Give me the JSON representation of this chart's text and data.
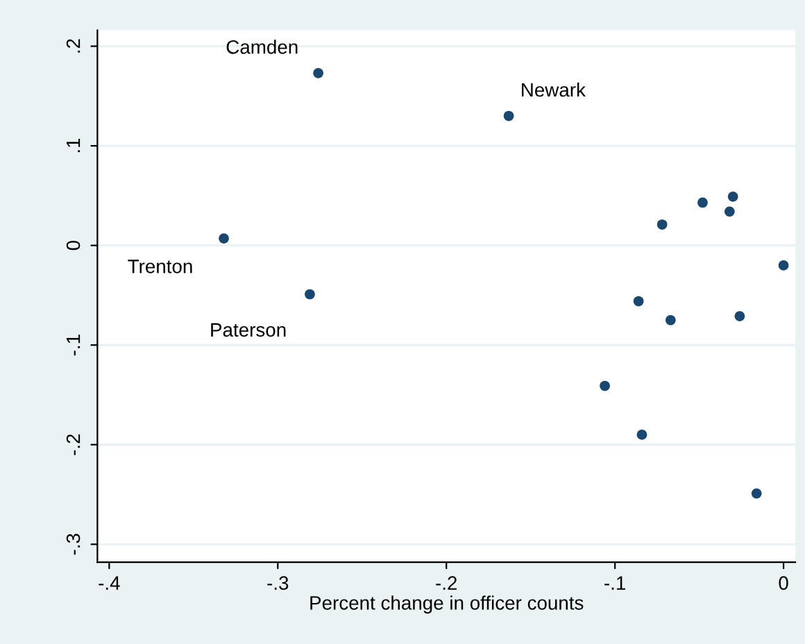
{
  "chart_data": {
    "type": "scatter",
    "xlabel": "Percent change in officer counts",
    "x": [
      -0.276,
      -0.163,
      -0.332,
      -0.281,
      -0.072,
      -0.048,
      -0.03,
      -0.032,
      0.0,
      -0.086,
      -0.067,
      -0.026,
      -0.106,
      -0.084,
      -0.016
    ],
    "series": [
      {
        "color": "#1a476f",
        "values": [
          0.173,
          0.13,
          0.007,
          -0.049,
          0.021,
          0.043,
          0.049,
          0.034,
          -0.02,
          -0.056,
          -0.075,
          -0.071,
          -0.141,
          -0.19,
          -0.249
        ]
      }
    ],
    "annotations": [
      {
        "text": "Camden",
        "x": -0.276,
        "y": 0.173
      },
      {
        "text": "Newark",
        "x": -0.163,
        "y": 0.13
      },
      {
        "text": "Trenton",
        "x": -0.332,
        "y": 0.007
      },
      {
        "text": "Paterson",
        "x": -0.281,
        "y": -0.049
      }
    ],
    "xlim": [
      -0.407,
      0.007
    ],
    "ylim": [
      -0.318,
      0.216
    ],
    "xticks": [
      {
        "value": -0.4,
        "label": "-.4"
      },
      {
        "value": -0.3,
        "label": "-.3"
      },
      {
        "value": -0.2,
        "label": "-.2"
      },
      {
        "value": -0.1,
        "label": "-.1"
      },
      0
    ],
    "yticks": [
      {
        "value": -0.3,
        "label": "-.3"
      },
      {
        "value": -0.2,
        "label": "-.2"
      },
      {
        "value": -0.1,
        "label": "-.1"
      },
      0,
      {
        "value": 0.1,
        "label": ".1"
      },
      {
        "value": 0.2,
        "label": ".2"
      }
    ],
    "grid": "y",
    "marker": "circle"
  }
}
